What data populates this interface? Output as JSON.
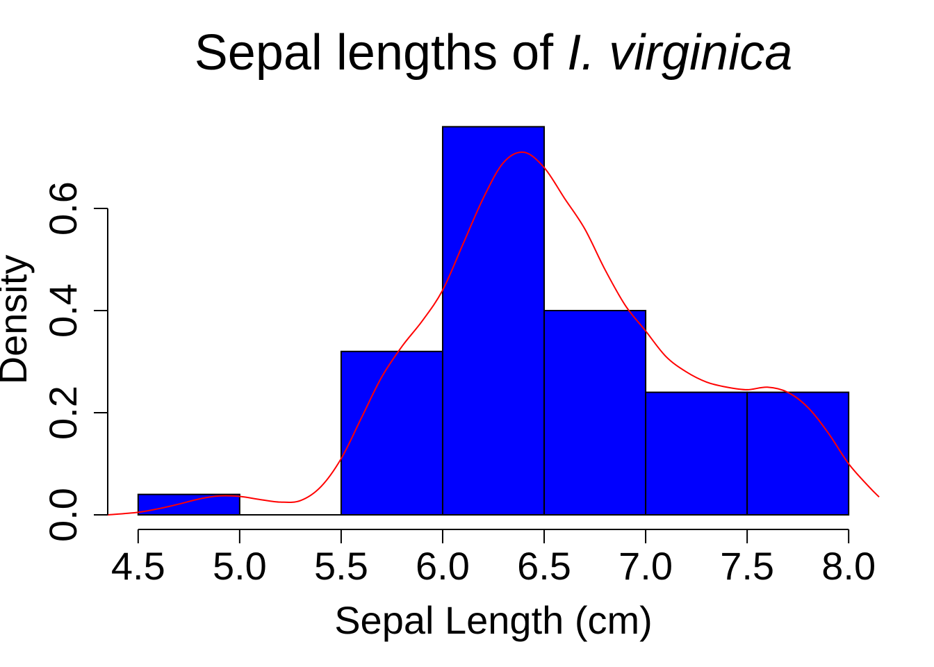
{
  "chart_data": {
    "type": "bar",
    "title": {
      "prefix": "Sepal lengths of ",
      "italic": "I. virginica"
    },
    "xlabel": "Sepal Length (cm)",
    "ylabel": "Density",
    "xlim": [
      4.35,
      8.15
    ],
    "ylim": [
      0,
      0.8
    ],
    "grid": false,
    "legend": "none",
    "x_ticks": [
      {
        "value": 4.5,
        "label": "4.5"
      },
      {
        "value": 5.0,
        "label": "5.0"
      },
      {
        "value": 5.5,
        "label": "5.5"
      },
      {
        "value": 6.0,
        "label": "6.0"
      },
      {
        "value": 6.5,
        "label": "6.5"
      },
      {
        "value": 7.0,
        "label": "7.0"
      },
      {
        "value": 7.5,
        "label": "7.5"
      },
      {
        "value": 8.0,
        "label": "8.0"
      }
    ],
    "y_ticks": [
      {
        "value": 0.0,
        "label": "0.0"
      },
      {
        "value": 0.2,
        "label": "0.2"
      },
      {
        "value": 0.4,
        "label": "0.4"
      },
      {
        "value": 0.6,
        "label": "0.6"
      }
    ],
    "histogram": {
      "bins": [
        {
          "from": 4.5,
          "to": 5.0,
          "density": 0.04
        },
        {
          "from": 5.0,
          "to": 5.5,
          "density": 0.0
        },
        {
          "from": 5.5,
          "to": 6.0,
          "density": 0.32
        },
        {
          "from": 6.0,
          "to": 6.5,
          "density": 0.76
        },
        {
          "from": 6.5,
          "to": 7.0,
          "density": 0.4
        },
        {
          "from": 7.0,
          "to": 7.5,
          "density": 0.24
        },
        {
          "from": 7.5,
          "to": 8.0,
          "density": 0.24
        }
      ],
      "color": "#0000ff"
    },
    "density_curve": {
      "color": "#ff0000",
      "x": [
        4.35,
        4.5,
        4.6,
        4.7,
        4.8,
        4.9,
        5.0,
        5.1,
        5.2,
        5.3,
        5.4,
        5.5,
        5.6,
        5.7,
        5.8,
        5.9,
        6.0,
        6.1,
        6.2,
        6.3,
        6.4,
        6.5,
        6.6,
        6.7,
        6.8,
        6.9,
        7.0,
        7.1,
        7.2,
        7.3,
        7.4,
        7.5,
        7.6,
        7.7,
        7.8,
        7.9,
        8.0,
        8.1,
        8.15
      ],
      "y": [
        0.0,
        0.005,
        0.012,
        0.021,
        0.031,
        0.037,
        0.036,
        0.03,
        0.025,
        0.028,
        0.055,
        0.11,
        0.19,
        0.27,
        0.33,
        0.38,
        0.44,
        0.53,
        0.62,
        0.69,
        0.71,
        0.68,
        0.62,
        0.56,
        0.48,
        0.41,
        0.36,
        0.31,
        0.28,
        0.26,
        0.25,
        0.245,
        0.25,
        0.24,
        0.21,
        0.16,
        0.1,
        0.055,
        0.035
      ]
    }
  }
}
